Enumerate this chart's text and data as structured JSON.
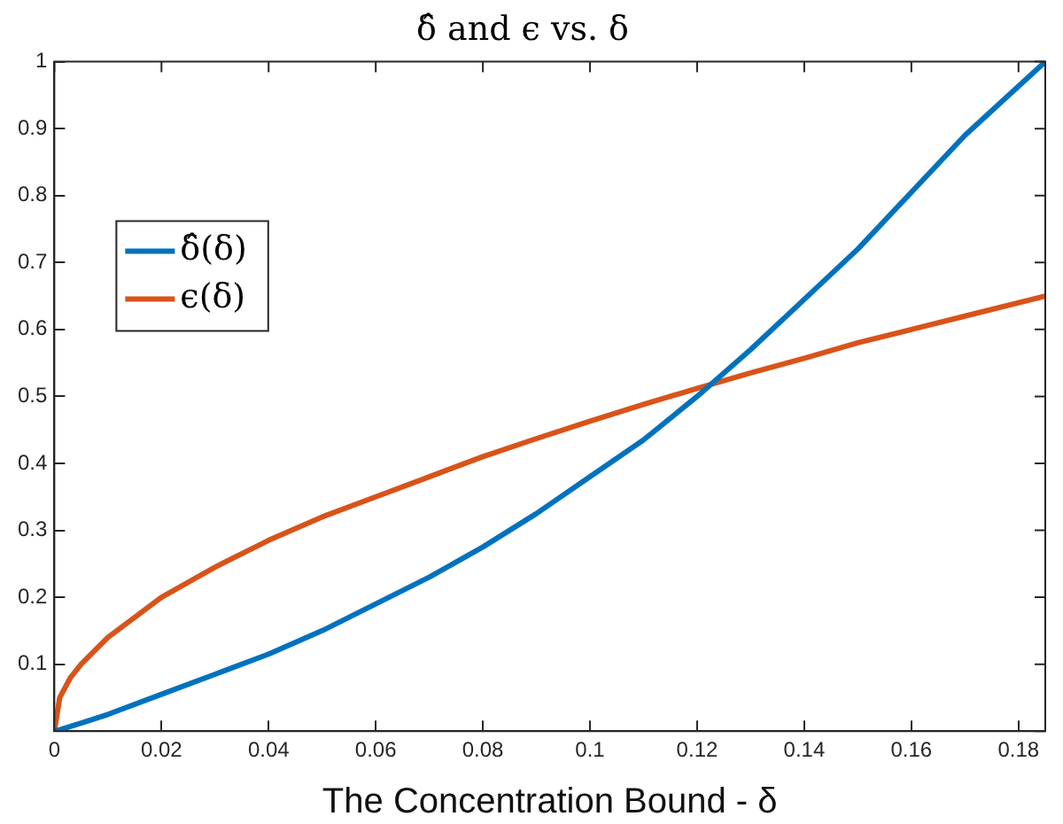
{
  "chart_data": {
    "type": "line",
    "title": "δ̂ and ϵ vs. δ",
    "xlabel": "The Concentration Bound - δ",
    "x": [
      0,
      0.001,
      0.003,
      0.005,
      0.01,
      0.02,
      0.03,
      0.04,
      0.05,
      0.06,
      0.07,
      0.08,
      0.09,
      0.1,
      0.11,
      0.12,
      0.13,
      0.14,
      0.15,
      0.16,
      0.17,
      0.185
    ],
    "series": [
      {
        "name": "δ̂(δ)",
        "color": "#0072bd",
        "values": [
          0,
          0.002,
          0.007,
          0.012,
          0.025,
          0.055,
          0.085,
          0.115,
          0.15,
          0.19,
          0.23,
          0.275,
          0.325,
          0.38,
          0.435,
          0.5,
          0.57,
          0.645,
          0.72,
          0.805,
          0.89,
          1.0
        ]
      },
      {
        "name": "ϵ(δ)",
        "color": "#d95319",
        "values": [
          0,
          0.05,
          0.08,
          0.1,
          0.14,
          0.2,
          0.245,
          0.285,
          0.32,
          0.35,
          0.38,
          0.41,
          0.437,
          0.463,
          0.488,
          0.512,
          0.535,
          0.557,
          0.58,
          0.6,
          0.62,
          0.65
        ]
      }
    ],
    "xlim": [
      0,
      0.185
    ],
    "xticks": [
      0,
      0.02,
      0.04,
      0.06,
      0.08,
      0.1,
      0.12,
      0.14,
      0.16,
      0.18
    ],
    "ylim": [
      0,
      1
    ],
    "yticks": [
      {
        "value": 0,
        "label": null
      },
      0.1,
      0.2,
      0.3,
      0.4,
      0.5,
      0.6,
      0.7,
      0.8,
      0.9,
      1
    ],
    "grid": false,
    "legend": "top left",
    "marker": "none",
    "line_style": "solid"
  }
}
